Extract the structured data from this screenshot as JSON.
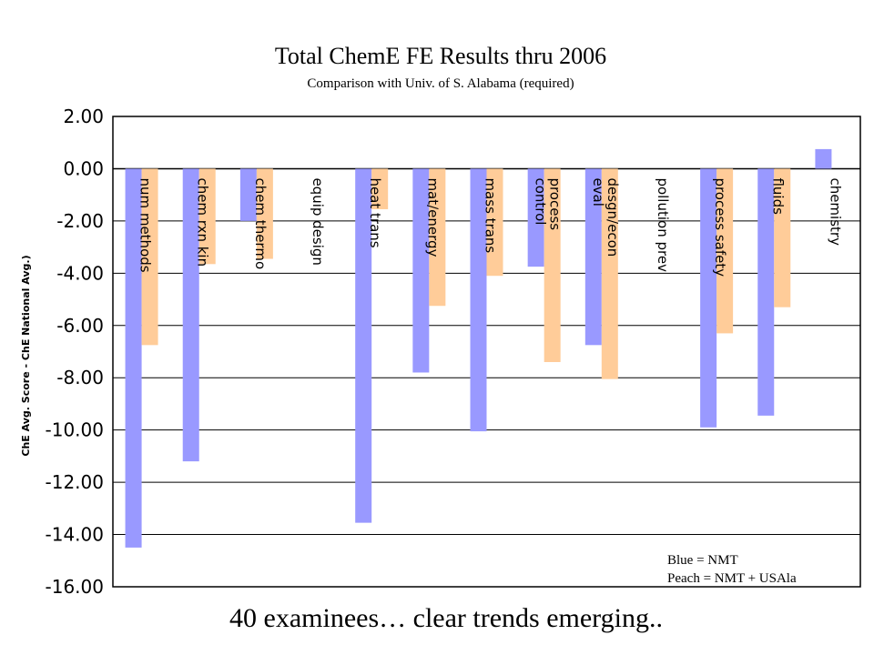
{
  "chart_data": {
    "type": "bar",
    "title": "Total ChemE FE Results thru 2006",
    "subtitle": "Comparison with Univ. of S. Alabama (required)",
    "ylabel": "ChE Avg. Score - ChE National Avg.)",
    "xlabel": "",
    "ylim": [
      -16,
      2
    ],
    "y_ticks": [
      "2.00",
      "0.00",
      "-2.00",
      "-4.00",
      "-6.00",
      "-8.00",
      "-10.00",
      "-12.00",
      "-14.00",
      "-16.00"
    ],
    "grid": true,
    "categories": [
      [
        "num methods"
      ],
      [
        "chem rxn kin"
      ],
      [
        "chem thermo"
      ],
      [
        "equip design"
      ],
      [
        "heat trans"
      ],
      [
        "mat/energy"
      ],
      [
        "mass trans"
      ],
      [
        "process",
        "control"
      ],
      [
        "desgn/econ",
        "eval"
      ],
      [
        "pollution prev"
      ],
      [
        "process safety"
      ],
      [
        "fluids"
      ],
      [
        "chemistry"
      ]
    ],
    "series": [
      {
        "name": "NMT",
        "color": "#9999ff",
        "values": [
          -14.5,
          -11.2,
          -2.0,
          null,
          -13.55,
          -7.8,
          -10.05,
          -3.75,
          -6.75,
          null,
          -9.9,
          -9.45,
          0.75
        ]
      },
      {
        "name": "NMT + USAla",
        "color": "#ffcc99",
        "values": [
          -6.75,
          -3.65,
          -3.45,
          null,
          -1.55,
          -5.25,
          -4.1,
          -7.4,
          -8.05,
          null,
          -6.3,
          -5.3,
          null
        ]
      }
    ],
    "legend": {
      "placement": "bottom-right",
      "lines": [
        "Blue = NMT",
        "Peach = NMT + USAla"
      ]
    }
  },
  "caption": "40 examinees…   clear trends emerging.."
}
